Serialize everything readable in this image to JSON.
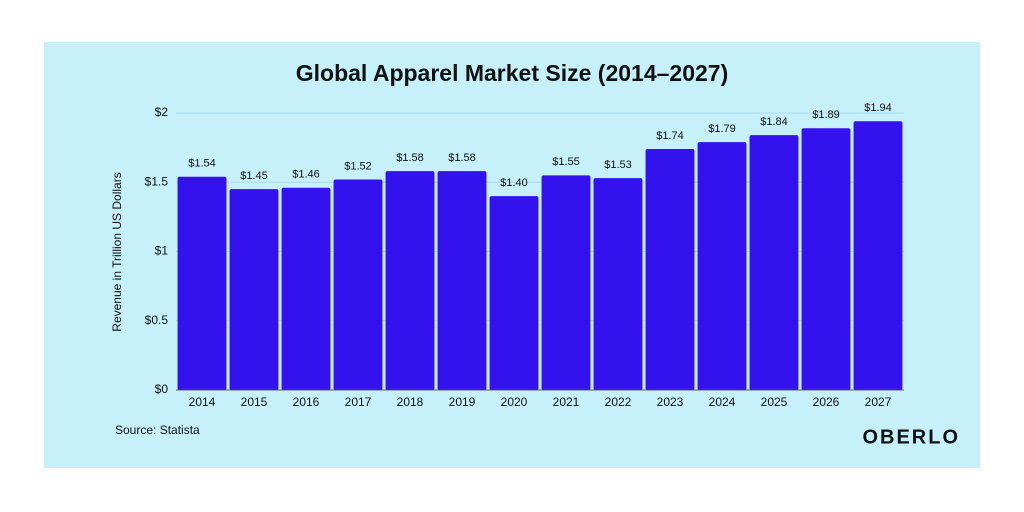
{
  "chart_data": {
    "type": "bar",
    "title": "Global Apparel Market Size (2014–2027)",
    "y_label": "Revenue in Trillion US Dollars",
    "source": "Source: Statista",
    "brand": "OBERLO",
    "categories": [
      "2014",
      "2015",
      "2016",
      "2017",
      "2018",
      "2019",
      "2020",
      "2021",
      "2022",
      "2023",
      "2024",
      "2025",
      "2026",
      "2027"
    ],
    "values": [
      1.54,
      1.45,
      1.46,
      1.52,
      1.58,
      1.58,
      1.4,
      1.55,
      1.53,
      1.74,
      1.79,
      1.84,
      1.89,
      1.94
    ],
    "value_labels": [
      "$1.54",
      "$1.45",
      "$1.46",
      "$1.52",
      "$1.58",
      "$1.58",
      "$1.40",
      "$1.55",
      "$1.53",
      "$1.74",
      "$1.79",
      "$1.84",
      "$1.89",
      "$1.94"
    ],
    "color": "#3412ee",
    "ylim": [
      0,
      2
    ],
    "yticks": [
      {
        "value": 0,
        "label": "$0"
      },
      {
        "value": 0.5,
        "label": "$0.5"
      },
      {
        "value": 1,
        "label": "$1"
      },
      {
        "value": 1.5,
        "label": "$1.5"
      },
      {
        "value": 2,
        "label": "$2"
      }
    ],
    "grid": true
  }
}
